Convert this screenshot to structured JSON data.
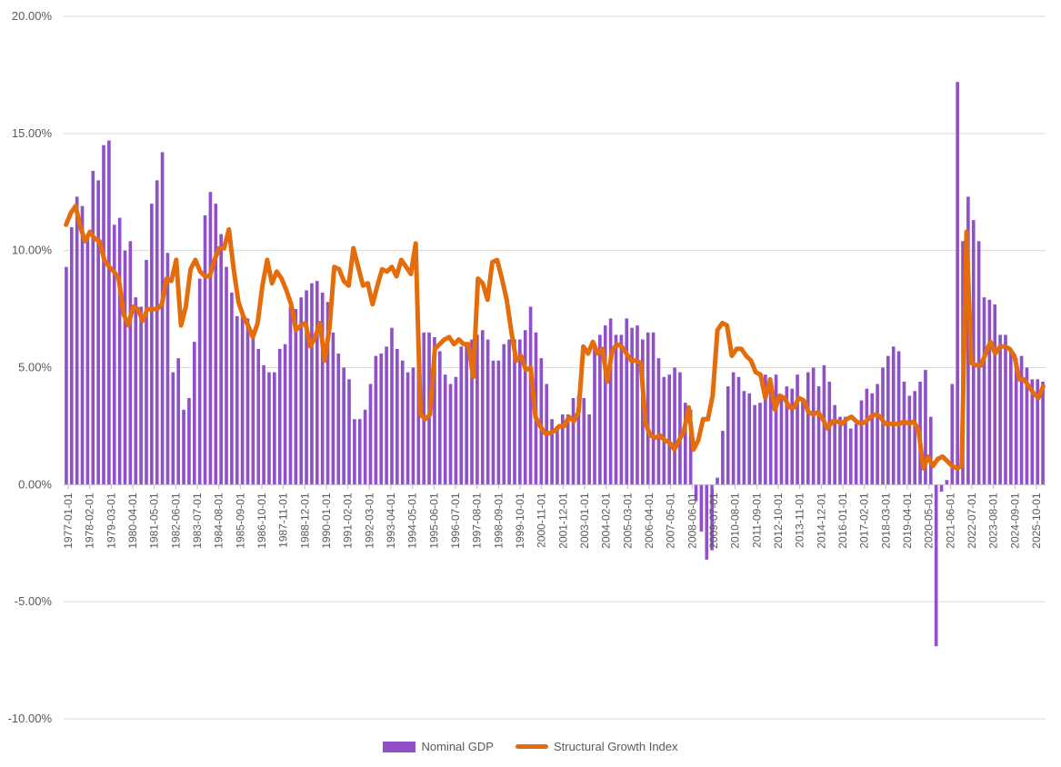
{
  "chart_data": {
    "type": "bar",
    "title": "",
    "xlabel": "",
    "ylabel": "",
    "ylim": [
      -10,
      20
    ],
    "y_ticks": [
      "20.00%",
      "15.00%",
      "10.00%",
      "5.00%",
      "0.00%",
      "-5.00%",
      "-10.00%"
    ],
    "x_ticks": [
      "1977-01-01",
      "1978-02-01",
      "1979-03-01",
      "1980-04-01",
      "1981-05-01",
      "1982-06-01",
      "1983-07-01",
      "1984-08-01",
      "1985-09-01",
      "1986-10-01",
      "1987-11-01",
      "1988-12-01",
      "1990-01-01",
      "1991-02-01",
      "1992-03-01",
      "1993-04-01",
      "1994-05-01",
      "1995-06-01",
      "1996-07-01",
      "1997-08-01",
      "1998-09-01",
      "1999-10-01",
      "2000-11-01",
      "2001-12-01",
      "2003-01-01",
      "2004-02-01",
      "2005-03-01",
      "2006-04-01",
      "2007-05-01",
      "2008-06-01",
      "2009-07-01",
      "2010-08-01",
      "2011-09-01",
      "2012-10-01",
      "2013-11-01",
      "2014-12-01",
      "2016-01-01",
      "2017-02-01",
      "2018-03-01",
      "2019-04-01",
      "2020-05-01",
      "2021-06-01",
      "2022-07-01",
      "2023-08-01",
      "2024-09-01",
      "2025-10-01"
    ],
    "legend": {
      "position": "bottom"
    },
    "series": [
      {
        "name": "Nominal GDP",
        "type": "bar",
        "color": "#9050c8",
        "values": [
          9.3,
          11.0,
          12.3,
          11.9,
          10.5,
          13.4,
          13.0,
          14.5,
          14.7,
          11.1,
          11.4,
          10.0,
          10.4,
          8.0,
          7.6,
          9.6,
          12.0,
          13.0,
          14.2,
          9.9,
          4.8,
          5.4,
          3.2,
          3.7,
          6.1,
          8.8,
          11.5,
          12.5,
          12.0,
          10.7,
          9.3,
          8.2,
          7.2,
          7.4,
          7.1,
          6.6,
          5.8,
          5.1,
          4.8,
          4.8,
          5.8,
          6.0,
          7.6,
          7.5,
          8.0,
          8.3,
          8.6,
          8.7,
          8.2,
          7.8,
          6.5,
          5.6,
          5.0,
          4.5,
          2.8,
          2.8,
          3.2,
          4.3,
          5.5,
          5.6,
          5.9,
          6.7,
          5.8,
          5.3,
          4.8,
          5.0,
          5.8,
          6.5,
          6.5,
          6.3,
          5.7,
          4.7,
          4.3,
          4.6,
          5.9,
          6.0,
          6.2,
          6.4,
          6.6,
          6.2,
          5.3,
          5.3,
          6.0,
          6.2,
          6.2,
          6.2,
          6.6,
          7.6,
          6.5,
          5.4,
          4.3,
          2.8,
          2.5,
          3.0,
          3.0,
          3.7,
          3.8,
          3.7,
          3.0,
          6.0,
          6.4,
          6.8,
          7.1,
          6.4,
          6.4,
          7.1,
          6.7,
          6.8,
          6.2,
          6.5,
          6.5,
          5.4,
          4.6,
          4.7,
          5.0,
          4.8,
          3.5,
          3.2,
          -0.7,
          -2.0,
          -3.2,
          -2.8,
          0.3,
          2.3,
          4.2,
          4.8,
          4.6,
          4.0,
          3.9,
          3.4,
          3.5,
          4.7,
          4.2,
          4.7,
          3.7,
          4.2,
          4.1,
          4.7,
          3.7,
          4.8,
          5.0,
          4.2,
          5.1,
          4.4,
          3.4,
          2.9,
          2.9,
          2.4,
          2.6,
          3.6,
          4.1,
          3.9,
          4.3,
          5.0,
          5.5,
          5.9,
          5.7,
          4.4,
          3.8,
          4.0,
          4.4,
          4.9,
          2.9,
          -6.9,
          -0.3,
          0.2,
          4.3,
          17.2,
          10.4,
          12.3,
          11.3,
          10.4,
          8.0,
          7.9,
          7.7,
          6.4,
          6.4,
          5.8,
          5.4,
          5.5,
          5.0,
          4.5,
          4.5,
          4.4
        ]
      },
      {
        "name": "Structural Growth Index",
        "type": "line",
        "color": "#e46c0a",
        "values": [
          11.1,
          11.6,
          11.9,
          11.0,
          10.4,
          10.8,
          10.5,
          10.4,
          9.6,
          9.3,
          9.1,
          8.8,
          7.3,
          6.8,
          7.6,
          7.5,
          7.0,
          7.5,
          7.5,
          7.5,
          7.7,
          8.8,
          8.7,
          9.6,
          6.8,
          7.6,
          9.2,
          9.6,
          9.1,
          8.9,
          8.9,
          9.6,
          10.1,
          10.1,
          10.9,
          9.2,
          7.8,
          7.2,
          6.8,
          6.3,
          6.9,
          8.5,
          9.6,
          8.6,
          9.1,
          8.8,
          8.3,
          7.7,
          6.6,
          6.8,
          6.9,
          5.9,
          6.3,
          6.9,
          5.3,
          6.7,
          9.3,
          9.2,
          8.7,
          8.5,
          10.1,
          9.3,
          8.5,
          8.6,
          7.7,
          8.5,
          9.2,
          9.1,
          9.3,
          8.9,
          9.6,
          9.3,
          9.0,
          10.3,
          3.0,
          2.8,
          3.0,
          5.8,
          6.0,
          6.2,
          6.3,
          6.0,
          6.2,
          6.0,
          6.0,
          4.6,
          8.8,
          8.6,
          7.9,
          9.5,
          9.6,
          8.8,
          7.9,
          6.5,
          5.3,
          5.5,
          4.9,
          5.0,
          2.9,
          2.5,
          2.2,
          2.2,
          2.3,
          2.5,
          2.5,
          2.9,
          2.7,
          3.1,
          5.9,
          5.6,
          6.1,
          5.6,
          5.8,
          4.4,
          5.7,
          6.0,
          5.9,
          5.6,
          5.3,
          5.3,
          5.2,
          2.6,
          2.1,
          2.0,
          2.1,
          1.9,
          1.8,
          1.5,
          1.9,
          2.3,
          3.3,
          1.5,
          1.9,
          2.8,
          2.8,
          3.8,
          6.6,
          6.9,
          6.8,
          5.5,
          5.8,
          5.8,
          5.5,
          5.3,
          4.8,
          4.7,
          3.7,
          4.5,
          3.2,
          3.8,
          3.7,
          3.3,
          3.3,
          3.7,
          3.6,
          3.1,
          3.0,
          3.1,
          2.8,
          2.4,
          2.7,
          2.7,
          2.6,
          2.8,
          2.9,
          2.7,
          2.6,
          2.7,
          2.9,
          3.0,
          2.9,
          2.6,
          2.6,
          2.6,
          2.6,
          2.7,
          2.6,
          2.7,
          2.3,
          0.7,
          1.2,
          0.8,
          1.1,
          1.2,
          1.0,
          0.8,
          0.7,
          0.8,
          10.8,
          5.2,
          5.1,
          5.1,
          5.6,
          6.1,
          5.6,
          5.9,
          5.9,
          5.8,
          5.5,
          4.5,
          4.5,
          4.2,
          3.9,
          3.7,
          4.2
        ]
      }
    ]
  }
}
